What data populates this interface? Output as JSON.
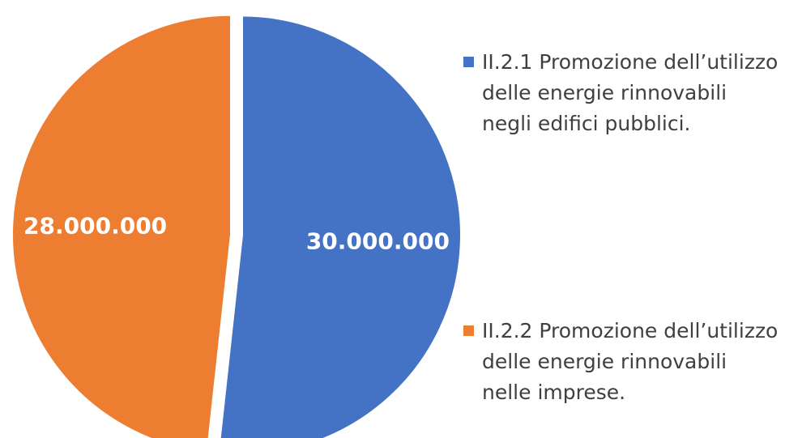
{
  "chart_data": {
    "type": "pie",
    "title": "",
    "start_angle_deg": 0,
    "direction": "clockwise",
    "legend_position": "right",
    "slices": [
      {
        "label": "II.2.1 Promozione dell’utilizzo delle energie rinnovabili negli edifici pubblici.",
        "value": 30000000,
        "display": "30.000.000",
        "color": "#4472c4"
      },
      {
        "label": "II.2.2 Promozione dell’utilizzo delle energie rinnovabili nelle imprese.",
        "value": 28000000,
        "display": "28.000.000",
        "color": "#ed7d31"
      }
    ]
  }
}
